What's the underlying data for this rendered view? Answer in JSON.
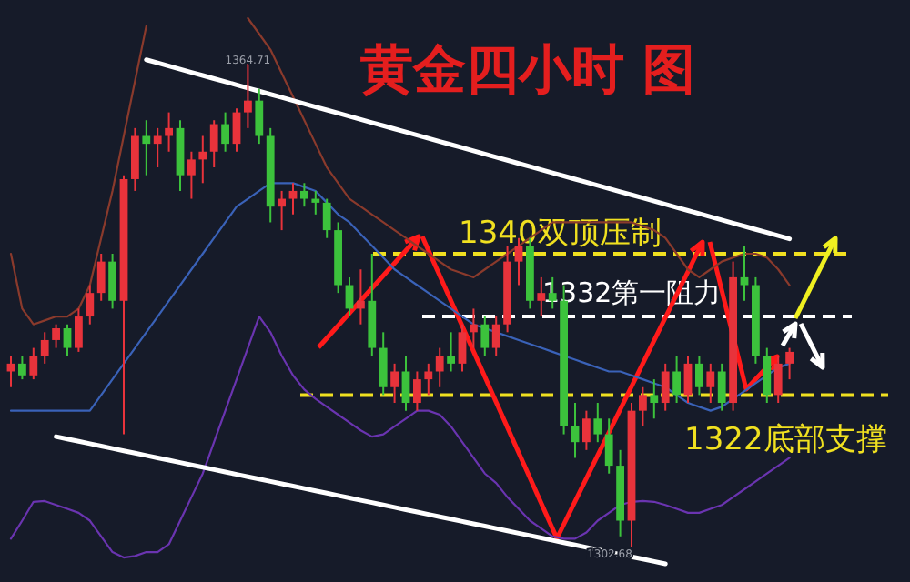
{
  "chart_data": {
    "type": "candlestick",
    "title": "黄金四小时 图",
    "categories": [
      null,
      null,
      null,
      null,
      null,
      null,
      null,
      null,
      null,
      null,
      null,
      null,
      null,
      null,
      null,
      null,
      null,
      null,
      null,
      null,
      null,
      null,
      null,
      null,
      null,
      null,
      null,
      null,
      null,
      null,
      null,
      null,
      null,
      null,
      null,
      null,
      null,
      null,
      null,
      null,
      null,
      null,
      null,
      null,
      null,
      null,
      null,
      null,
      null,
      null,
      null,
      null,
      null,
      null,
      null,
      null,
      null,
      null,
      null,
      null,
      null,
      null,
      null,
      null,
      null,
      null,
      null,
      null,
      null,
      null
    ],
    "ohlc": [
      [
        1325,
        1327,
        1323,
        1326
      ],
      [
        1326,
        1327,
        1324,
        1324.5
      ],
      [
        1324.5,
        1328,
        1324,
        1327
      ],
      [
        1327,
        1330,
        1326,
        1329
      ],
      [
        1329,
        1331,
        1328,
        1330.5
      ],
      [
        1330.5,
        1331,
        1327,
        1328
      ],
      [
        1328,
        1333,
        1327.5,
        1332
      ],
      [
        1332,
        1336,
        1331,
        1335
      ],
      [
        1335,
        1340,
        1334,
        1339
      ],
      [
        1339,
        1340,
        1333,
        1334
      ],
      [
        1334,
        1350,
        1317,
        1349.5
      ],
      [
        1349.5,
        1356,
        1348,
        1355
      ],
      [
        1355,
        1357,
        1350,
        1354
      ],
      [
        1354,
        1356,
        1351,
        1355
      ],
      [
        1355,
        1358,
        1353,
        1356
      ],
      [
        1356,
        1357,
        1348,
        1350
      ],
      [
        1350,
        1353,
        1347,
        1352
      ],
      [
        1352,
        1355,
        1349,
        1353
      ],
      [
        1353,
        1357,
        1351,
        1356.5
      ],
      [
        1356.5,
        1358,
        1353,
        1354
      ],
      [
        1354,
        1358.5,
        1353,
        1358
      ],
      [
        1358,
        1364.71,
        1356,
        1359.5
      ],
      [
        1359.5,
        1361,
        1354,
        1355
      ],
      [
        1355,
        1356,
        1344,
        1346
      ],
      [
        1346,
        1348,
        1343,
        1347
      ],
      [
        1347,
        1349,
        1345,
        1348
      ],
      [
        1348,
        1349,
        1346,
        1347
      ],
      [
        1347,
        1348,
        1345,
        1346.5
      ],
      [
        1346.5,
        1347,
        1342,
        1343
      ],
      [
        1343,
        1344,
        1335,
        1336
      ],
      [
        1336,
        1337,
        1332,
        1333
      ],
      [
        1333,
        1338,
        1331,
        1334
      ],
      [
        1334,
        1340,
        1327,
        1328
      ],
      [
        1328,
        1330,
        1322,
        1323
      ],
      [
        1323,
        1326,
        1321,
        1325
      ],
      [
        1325,
        1327,
        1320,
        1321
      ],
      [
        1321,
        1325,
        1320,
        1324
      ],
      [
        1324,
        1326,
        1322,
        1325
      ],
      [
        1325,
        1328,
        1323,
        1327
      ],
      [
        1327,
        1330,
        1325,
        1326
      ],
      [
        1326,
        1331,
        1325,
        1330
      ],
      [
        1330,
        1333,
        1328,
        1331
      ],
      [
        1331,
        1332,
        1327,
        1328
      ],
      [
        1328,
        1332,
        1327,
        1331
      ],
      [
        1331,
        1341,
        1330,
        1339
      ],
      [
        1339,
        1342,
        1336,
        1341
      ],
      [
        1341,
        1342,
        1333,
        1334
      ],
      [
        1334,
        1337,
        1332,
        1335
      ],
      [
        1335,
        1337,
        1333,
        1334
      ],
      [
        1334,
        1336,
        1317,
        1318
      ],
      [
        1318,
        1321,
        1314,
        1316
      ],
      [
        1316,
        1320,
        1315,
        1319
      ],
      [
        1319,
        1321,
        1316,
        1317
      ],
      [
        1317,
        1319,
        1312,
        1313
      ],
      [
        1313,
        1315,
        1304,
        1306
      ],
      [
        1306,
        1321,
        1302.68,
        1320
      ],
      [
        1320,
        1323,
        1318,
        1322
      ],
      [
        1322,
        1324,
        1319,
        1321
      ],
      [
        1321,
        1326,
        1320,
        1325
      ],
      [
        1325,
        1327,
        1321,
        1322
      ],
      [
        1322,
        1327,
        1321,
        1326
      ],
      [
        1326,
        1327,
        1322,
        1323
      ],
      [
        1323,
        1326,
        1321,
        1325
      ],
      [
        1325,
        1326,
        1320,
        1321
      ],
      [
        1321,
        1339,
        1320,
        1337
      ],
      [
        1337,
        1341,
        1334,
        1336
      ],
      [
        1336,
        1337,
        1326,
        1327
      ],
      [
        1327,
        1328,
        1321,
        1322
      ],
      [
        1322,
        1327,
        1321,
        1326
      ],
      [
        1326,
        1328,
        1324,
        1327.5
      ]
    ],
    "series": [
      {
        "type": "line",
        "color": "#3a62b8",
        "values": [
          1320,
          1320,
          1320,
          1320,
          1320,
          1320,
          1320,
          1320,
          1322,
          1324,
          1326,
          1328,
          1330,
          1332,
          1334,
          1336,
          1338,
          1340,
          1342,
          1344,
          1346,
          1347,
          1348,
          1349,
          1349,
          1349,
          1348.5,
          1348,
          1346.5,
          1345,
          1344,
          1342.5,
          1341,
          1339.5,
          1338,
          1337,
          1336,
          1335,
          1334,
          1333,
          1332,
          1331,
          1330.5,
          1330,
          1329.5,
          1329,
          1328.5,
          1328,
          1327.5,
          1327,
          1326.5,
          1326,
          1325.5,
          1325,
          1325,
          1324.5,
          1324,
          1323.5,
          1323,
          1322,
          1321,
          1320.5,
          1320,
          1320.5,
          1321.5,
          1322.5,
          1323.5,
          1324.5,
          1325.5,
          1326
        ]
      },
      {
        "type": "line",
        "color": "#8a3a2c",
        "values": [
          1340,
          1333,
          1331,
          1331.5,
          1332,
          1332,
          1333,
          1336,
          1342,
          1348,
          1355,
          1362,
          1369,
          null,
          null,
          null,
          null,
          null,
          null,
          null,
          null,
          1370,
          1368,
          1366,
          1363,
          1360,
          1357,
          1354,
          1351,
          1349,
          1347,
          1346,
          1345,
          1344,
          1343,
          1342,
          1341,
          1340,
          1339,
          1338,
          1337.5,
          1337,
          1338,
          1339,
          1340,
          1341,
          1342,
          1343,
          1344,
          1344,
          1344,
          1344,
          1344,
          1344,
          1344,
          1344,
          1343.5,
          1343,
          1342,
          1340,
          1338,
          1337,
          1338,
          1339,
          1339.5,
          1340,
          1340,
          1339.5,
          1338,
          1336
        ]
      },
      {
        "type": "line",
        "color": "#6a34b0",
        "values": [
          1303.7,
          1306,
          1308.4,
          1308.5,
          1308,
          1307.5,
          1307,
          1306,
          1304,
          1302,
          1301.3,
          1301.5,
          1302,
          1302,
          1303,
          1306,
          1309,
          1312,
          1316,
          1320,
          1324,
          1328,
          1332,
          1330,
          1327,
          1324.5,
          1322.7,
          1321.5,
          1320.5,
          1319.5,
          1318.5,
          1317.5,
          1316.7,
          1317,
          1318,
          1319,
          1320,
          1320,
          1319.5,
          1318,
          1316,
          1314,
          1312,
          1310.8,
          1309,
          1307.5,
          1306,
          1305,
          1304,
          1303.7,
          1303.7,
          1304.5,
          1306,
          1307,
          1308,
          1308.4,
          1308.5,
          1308.4,
          1308,
          1307.5,
          1307,
          1307,
          1307.5,
          1308,
          1309,
          1310,
          1311,
          1312,
          1313,
          1314
        ]
      },
      {
        "type": "line",
        "color": "#ffffff",
        "values": [
          null,
          null,
          null,
          null,
          null,
          null,
          null,
          null,
          null,
          null,
          null,
          null,
          1364.7,
          1364.3,
          1363.9,
          1363.5,
          1363.1,
          1362.7,
          1362.3,
          1361.9,
          1361.5,
          1361.1,
          1360.7,
          1360.3,
          1359.9,
          1359.5,
          1359.1,
          1358.7,
          1358.3,
          1357.9,
          1357.5,
          1357.1,
          1356.7,
          1356.3,
          1355.9,
          1355.5,
          1355.1,
          1354.7,
          1354.3,
          1353.9,
          1353.5,
          1353.1,
          1352.7,
          1352.3,
          1351.9,
          1351.5,
          1351.1,
          1350.7,
          1350.3,
          1349.9,
          1349.5,
          1349.1,
          1348.7,
          1348.3,
          1347.9,
          1347.5,
          1347.1,
          1346.7,
          1346.3,
          1345.9,
          1345.5,
          1345.1,
          1344.7,
          1344.3,
          1343.9,
          1343.5,
          1343.1,
          1342.7,
          1342.3,
          1341.9
        ]
      },
      {
        "type": "line",
        "color": "#ffffff",
        "values": [
          null,
          null,
          null,
          null,
          1316.7,
          1316.4,
          1316.1,
          1315.8,
          1315.5,
          1315.2,
          1314.9,
          1314.6,
          1314.3,
          1314.0,
          1313.7,
          1313.4,
          1313.1,
          1312.8,
          1312.5,
          1312.2,
          1311.9,
          1311.6,
          1311.3,
          1311.0,
          1310.7,
          1310.4,
          1310.1,
          1309.8,
          1309.5,
          1309.2,
          1308.9,
          1308.6,
          1308.3,
          1308.0,
          1307.7,
          1307.4,
          1307.1,
          1306.8,
          1306.5,
          1306.2,
          1305.9,
          1305.6,
          1305.3,
          1305.0,
          1304.7,
          1304.4,
          1304.1,
          1303.8,
          1303.5,
          1303.2,
          1302.9,
          1302.6,
          1302.3,
          1302.0,
          1301.7,
          1301.4,
          1301.1,
          1300.8,
          1300.5,
          null,
          null,
          null,
          null,
          null,
          null,
          null,
          null,
          null,
          null,
          null
        ]
      }
    ],
    "ref_lines": [
      {
        "axis": "y",
        "value": 1340,
        "label": "1340双顶压制",
        "color": "#f0e020",
        "line_style": "dashed"
      },
      {
        "axis": "y",
        "value": 1332,
        "label": "1332第一阻力",
        "color": "#ffffff",
        "line_style": "dashed"
      },
      {
        "axis": "y",
        "value": 1322,
        "label": "1322底部支撑",
        "color": "#f0e020",
        "line_style": "dashed"
      }
    ],
    "annotations": [
      {
        "text": "1364.71",
        "y": 1364.71
      },
      {
        "text": "1302.68",
        "y": 1302.68
      }
    ]
  }
}
